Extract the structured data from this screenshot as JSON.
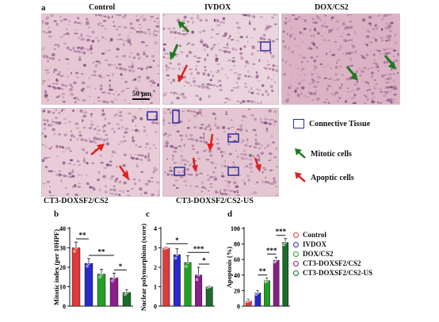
{
  "figure": {
    "panel_a": {
      "letter": "a",
      "top_labels": [
        "Control",
        "IVDOX",
        "DOX/CS2"
      ],
      "bottom_labels": [
        "CT3-DOXSF2/CS2",
        "CT3-DOXSF2/CS2-US"
      ],
      "scale_bar": "50 μm",
      "legend": {
        "connective": "Connective Tissue",
        "mitotic": "Mitotic cells",
        "apoptic": "Apoptic cells"
      },
      "colors": {
        "connective_box": "#2a2aa8",
        "mitotic_arrow": "#1f7a1f",
        "apoptic_arrow": "#e02020",
        "tissue_pink": "#e4c2cf",
        "tissue_nuclei": "#8e5f8a"
      }
    },
    "panel_b": {
      "letter": "b"
    },
    "panel_c": {
      "letter": "c"
    },
    "panel_d": {
      "letter": "d"
    }
  },
  "chart_data": [
    {
      "type": "bar",
      "panel": "b",
      "ylabel": "Mitotic index (per 10HPF)",
      "ylim": [
        0,
        40
      ],
      "yticks": [
        0,
        10,
        20,
        30,
        40
      ],
      "categories": [
        "Control",
        "IVDOX",
        "DOX/CS2",
        "CT3-DOXSF2/CS2",
        "CT3-DOXSF2/CS2-US"
      ],
      "values": [
        30,
        22,
        16.5,
        14.5,
        7
      ],
      "errors": [
        3,
        2.5,
        2.5,
        2.5,
        1.5
      ],
      "colors": [
        "#e03a3a",
        "#2a2ac8",
        "#22a022",
        "#8a1e8a",
        "#1b6b2b"
      ],
      "significance": [
        {
          "from": 0,
          "to": 1,
          "label": "**"
        },
        {
          "from": 1,
          "to": 3,
          "label": "**"
        },
        {
          "from": 3,
          "to": 4,
          "label": "*"
        }
      ]
    },
    {
      "type": "bar",
      "panel": "c",
      "ylabel": "Nuclear polymorphism (score)",
      "ylim": [
        0,
        4
      ],
      "yticks": [
        0,
        1,
        2,
        3,
        4
      ],
      "categories": [
        "Control",
        "IVDOX",
        "DOX/CS2",
        "CT3-DOXSF2/CS2",
        "CT3-DOXSF2/CS2-US"
      ],
      "values": [
        3.0,
        2.65,
        2.25,
        1.6,
        1.0
      ],
      "errors": [
        0.05,
        0.3,
        0.35,
        0.4,
        0.05
      ],
      "colors": [
        "#e03a3a",
        "#2a2ac8",
        "#22a022",
        "#8a1e8a",
        "#1b6b2b"
      ],
      "significance": [
        {
          "from": 0,
          "to": 2,
          "label": "*"
        },
        {
          "from": 2,
          "to": 4,
          "label": "***"
        },
        {
          "from": 3,
          "to": 4,
          "label": "*"
        }
      ]
    },
    {
      "type": "bar",
      "panel": "d",
      "ylabel": "Apoptosis (%)",
      "ylim": [
        0,
        100
      ],
      "yticks": [
        0,
        20,
        40,
        60,
        80,
        100
      ],
      "categories": [
        "Control",
        "IVDOX",
        "DOX/CS2",
        "CT3-DOXSF2/CS2",
        "CT3-DOXSF2/CS2-US"
      ],
      "values": [
        7,
        17,
        33,
        59,
        82
      ],
      "errors": [
        2,
        3,
        3,
        4,
        5
      ],
      "colors": [
        "#e03a3a",
        "#2a2ac8",
        "#22a022",
        "#8a1e8a",
        "#1b6b2b"
      ],
      "legend": [
        "Control",
        "IVDOX",
        "DOX/CS2",
        "CT3-DOXSF2/CS2",
        "CT3-DOXSF2/CS2-US"
      ],
      "significance": [
        {
          "from": 1,
          "to": 2,
          "label": "**"
        },
        {
          "from": 2,
          "to": 3,
          "label": "***"
        },
        {
          "from": 3,
          "to": 4,
          "label": "***"
        }
      ]
    }
  ]
}
